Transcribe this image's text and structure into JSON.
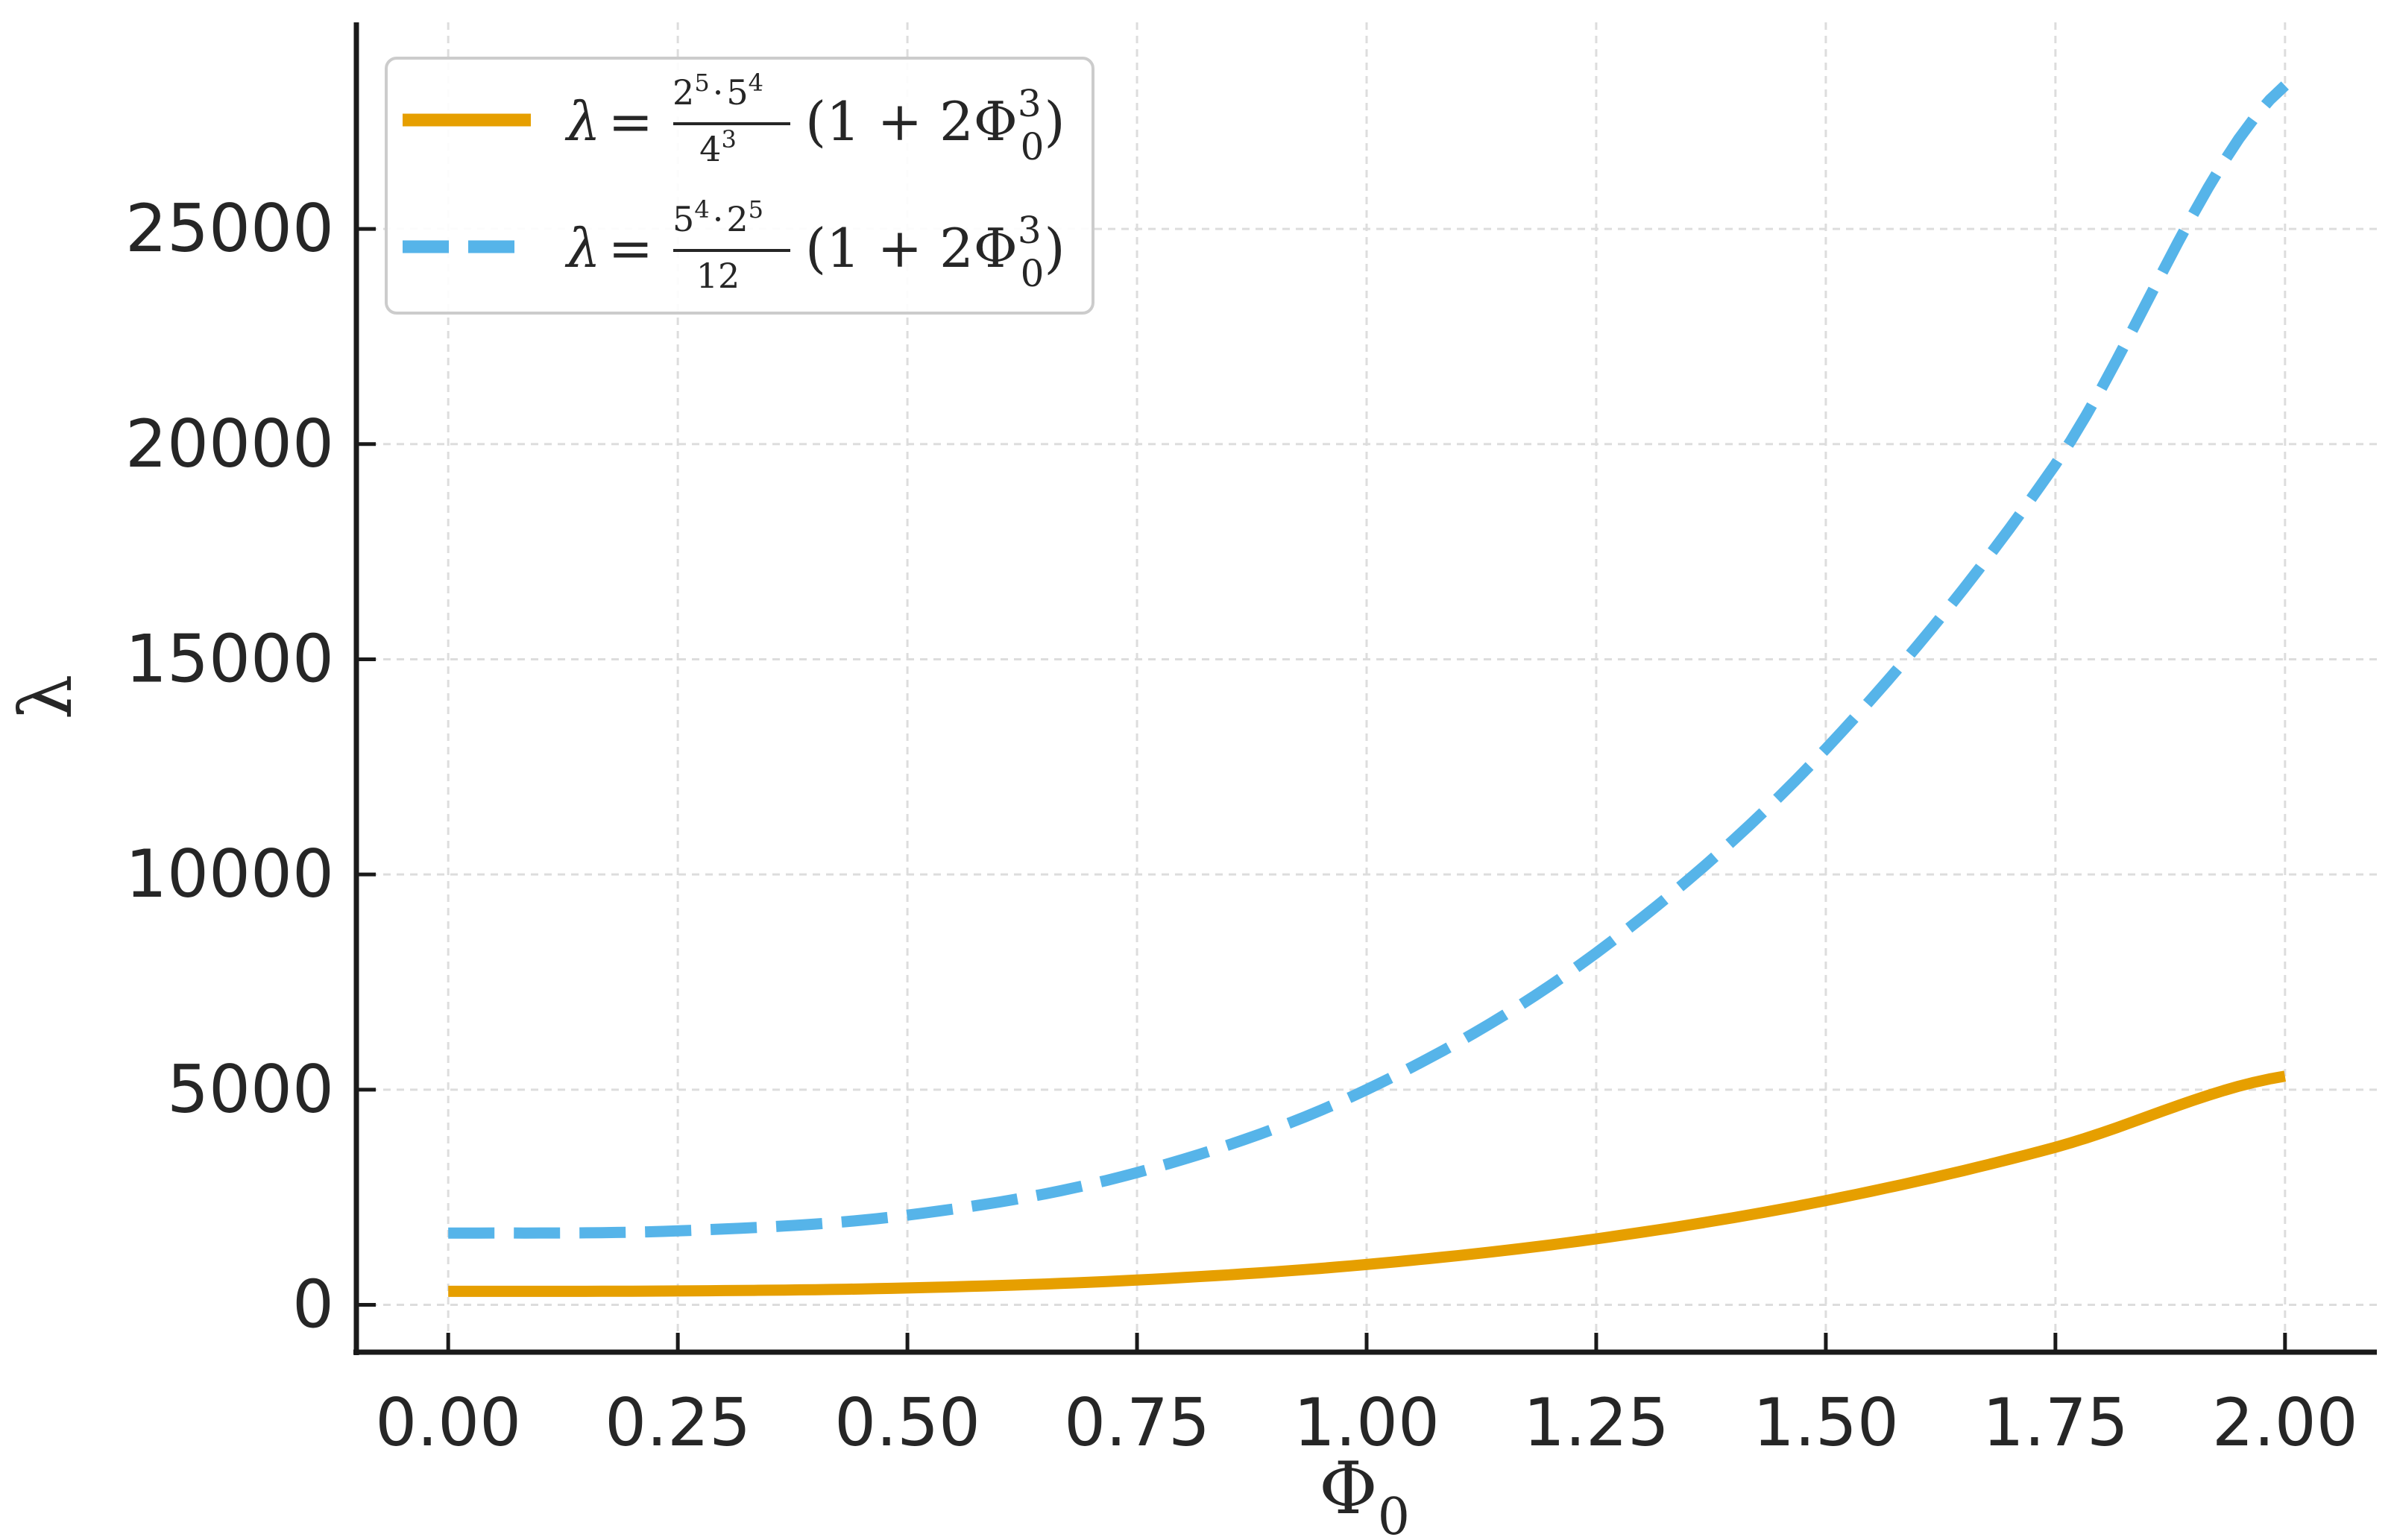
{
  "chart_data": {
    "type": "line",
    "xlabel": "Φ",
    "xlabel_sub": "0",
    "ylabel": "λ",
    "xlim": [
      -0.1,
      2.1
    ],
    "ylim": [
      -1100,
      29800
    ],
    "x_ticks": [
      0.0,
      0.25,
      0.5,
      0.75,
      1.0,
      1.25,
      1.5,
      1.75,
      2.0
    ],
    "x_tick_labels": [
      "0.00",
      "0.25",
      "0.50",
      "0.75",
      "1.00",
      "1.25",
      "1.50",
      "1.75",
      "2.00"
    ],
    "y_ticks": [
      0,
      5000,
      10000,
      15000,
      20000,
      25000
    ],
    "y_tick_labels": [
      "0",
      "5000",
      "10000",
      "15000",
      "20000",
      "25000"
    ],
    "grid": true,
    "legend_position": "top-left",
    "colors": {
      "series_1": "#e69f00",
      "series_2": "#56b4e9",
      "axis": "#1a1a1a",
      "grid": "#dddddd"
    },
    "x": [
      0.0,
      0.25,
      0.5,
      0.75,
      1.0,
      1.25,
      1.5,
      1.75,
      2.0
    ],
    "series": [
      {
        "name": "λ = (2⁵·5⁴/4³)(1 + 2Φ₀³)",
        "legend": {
          "lambda": "λ",
          "eq": "=",
          "num_a": "2",
          "num_a_exp": "5",
          "dot": "·",
          "num_b": "5",
          "num_b_exp": "4",
          "den": "4",
          "den_exp": "3",
          "tail_open": "(1 + 2Φ",
          "tail_exp": "3",
          "tail_sub": "0",
          "tail_close": ")"
        },
        "style": "solid",
        "values": [
          312.5,
          322.3,
          390.6,
          576.2,
          937.5,
          1533.2,
          2421.9,
          3662.1,
          5312.5
        ]
      },
      {
        "name": "λ = (5⁴·2⁵/12)(1 + 2Φ₀³)",
        "legend": {
          "lambda": "λ",
          "eq": "=",
          "num_a": "5",
          "num_a_exp": "4",
          "dot": "·",
          "num_b": "2",
          "num_b_exp": "5",
          "den": "12",
          "den_exp": "",
          "tail_open": "(1 + 2Φ",
          "tail_exp": "3",
          "tail_sub": "0",
          "tail_close": ")"
        },
        "style": "dashed",
        "values": [
          1666.7,
          1718.8,
          2083.3,
          3072.9,
          5000.0,
          8177.1,
          12916.7,
          19531.3,
          28333.3
        ]
      }
    ]
  }
}
